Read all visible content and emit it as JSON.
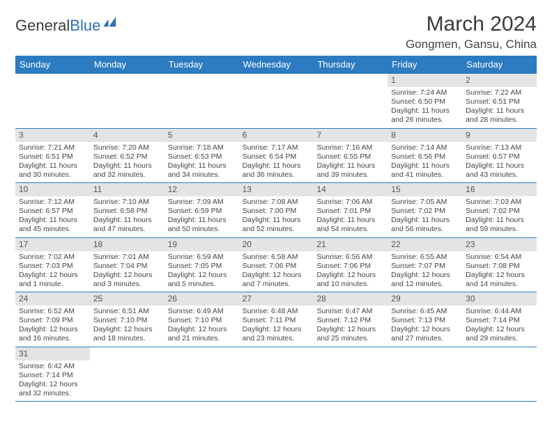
{
  "logo": {
    "text1": "General",
    "text2": "Blue"
  },
  "title": "March 2024",
  "location": "Gongmen, Gansu, China",
  "colors": {
    "header_bg": "#2d7bc0",
    "header_text": "#ffffff",
    "daynum_bg": "#e4e4e4",
    "border": "#2d7bc0",
    "text": "#444444"
  },
  "weekdays": [
    "Sunday",
    "Monday",
    "Tuesday",
    "Wednesday",
    "Thursday",
    "Friday",
    "Saturday"
  ],
  "weeks": [
    [
      {
        "n": "",
        "sr": "",
        "ss": "",
        "dl": ""
      },
      {
        "n": "",
        "sr": "",
        "ss": "",
        "dl": ""
      },
      {
        "n": "",
        "sr": "",
        "ss": "",
        "dl": ""
      },
      {
        "n": "",
        "sr": "",
        "ss": "",
        "dl": ""
      },
      {
        "n": "",
        "sr": "",
        "ss": "",
        "dl": ""
      },
      {
        "n": "1",
        "sr": "Sunrise: 7:24 AM",
        "ss": "Sunset: 6:50 PM",
        "dl": "Daylight: 11 hours and 26 minutes."
      },
      {
        "n": "2",
        "sr": "Sunrise: 7:22 AM",
        "ss": "Sunset: 6:51 PM",
        "dl": "Daylight: 11 hours and 28 minutes."
      }
    ],
    [
      {
        "n": "3",
        "sr": "Sunrise: 7:21 AM",
        "ss": "Sunset: 6:51 PM",
        "dl": "Daylight: 11 hours and 30 minutes."
      },
      {
        "n": "4",
        "sr": "Sunrise: 7:20 AM",
        "ss": "Sunset: 6:52 PM",
        "dl": "Daylight: 11 hours and 32 minutes."
      },
      {
        "n": "5",
        "sr": "Sunrise: 7:18 AM",
        "ss": "Sunset: 6:53 PM",
        "dl": "Daylight: 11 hours and 34 minutes."
      },
      {
        "n": "6",
        "sr": "Sunrise: 7:17 AM",
        "ss": "Sunset: 6:54 PM",
        "dl": "Daylight: 11 hours and 36 minutes."
      },
      {
        "n": "7",
        "sr": "Sunrise: 7:16 AM",
        "ss": "Sunset: 6:55 PM",
        "dl": "Daylight: 11 hours and 39 minutes."
      },
      {
        "n": "8",
        "sr": "Sunrise: 7:14 AM",
        "ss": "Sunset: 6:56 PM",
        "dl": "Daylight: 11 hours and 41 minutes."
      },
      {
        "n": "9",
        "sr": "Sunrise: 7:13 AM",
        "ss": "Sunset: 6:57 PM",
        "dl": "Daylight: 11 hours and 43 minutes."
      }
    ],
    [
      {
        "n": "10",
        "sr": "Sunrise: 7:12 AM",
        "ss": "Sunset: 6:57 PM",
        "dl": "Daylight: 11 hours and 45 minutes."
      },
      {
        "n": "11",
        "sr": "Sunrise: 7:10 AM",
        "ss": "Sunset: 6:58 PM",
        "dl": "Daylight: 11 hours and 47 minutes."
      },
      {
        "n": "12",
        "sr": "Sunrise: 7:09 AM",
        "ss": "Sunset: 6:59 PM",
        "dl": "Daylight: 11 hours and 50 minutes."
      },
      {
        "n": "13",
        "sr": "Sunrise: 7:08 AM",
        "ss": "Sunset: 7:00 PM",
        "dl": "Daylight: 11 hours and 52 minutes."
      },
      {
        "n": "14",
        "sr": "Sunrise: 7:06 AM",
        "ss": "Sunset: 7:01 PM",
        "dl": "Daylight: 11 hours and 54 minutes."
      },
      {
        "n": "15",
        "sr": "Sunrise: 7:05 AM",
        "ss": "Sunset: 7:02 PM",
        "dl": "Daylight: 11 hours and 56 minutes."
      },
      {
        "n": "16",
        "sr": "Sunrise: 7:03 AM",
        "ss": "Sunset: 7:02 PM",
        "dl": "Daylight: 11 hours and 59 minutes."
      }
    ],
    [
      {
        "n": "17",
        "sr": "Sunrise: 7:02 AM",
        "ss": "Sunset: 7:03 PM",
        "dl": "Daylight: 12 hours and 1 minute."
      },
      {
        "n": "18",
        "sr": "Sunrise: 7:01 AM",
        "ss": "Sunset: 7:04 PM",
        "dl": "Daylight: 12 hours and 3 minutes."
      },
      {
        "n": "19",
        "sr": "Sunrise: 6:59 AM",
        "ss": "Sunset: 7:05 PM",
        "dl": "Daylight: 12 hours and 5 minutes."
      },
      {
        "n": "20",
        "sr": "Sunrise: 6:58 AM",
        "ss": "Sunset: 7:06 PM",
        "dl": "Daylight: 12 hours and 7 minutes."
      },
      {
        "n": "21",
        "sr": "Sunrise: 6:56 AM",
        "ss": "Sunset: 7:06 PM",
        "dl": "Daylight: 12 hours and 10 minutes."
      },
      {
        "n": "22",
        "sr": "Sunrise: 6:55 AM",
        "ss": "Sunset: 7:07 PM",
        "dl": "Daylight: 12 hours and 12 minutes."
      },
      {
        "n": "23",
        "sr": "Sunrise: 6:54 AM",
        "ss": "Sunset: 7:08 PM",
        "dl": "Daylight: 12 hours and 14 minutes."
      }
    ],
    [
      {
        "n": "24",
        "sr": "Sunrise: 6:52 AM",
        "ss": "Sunset: 7:09 PM",
        "dl": "Daylight: 12 hours and 16 minutes."
      },
      {
        "n": "25",
        "sr": "Sunrise: 6:51 AM",
        "ss": "Sunset: 7:10 PM",
        "dl": "Daylight: 12 hours and 18 minutes."
      },
      {
        "n": "26",
        "sr": "Sunrise: 6:49 AM",
        "ss": "Sunset: 7:10 PM",
        "dl": "Daylight: 12 hours and 21 minutes."
      },
      {
        "n": "27",
        "sr": "Sunrise: 6:48 AM",
        "ss": "Sunset: 7:11 PM",
        "dl": "Daylight: 12 hours and 23 minutes."
      },
      {
        "n": "28",
        "sr": "Sunrise: 6:47 AM",
        "ss": "Sunset: 7:12 PM",
        "dl": "Daylight: 12 hours and 25 minutes."
      },
      {
        "n": "29",
        "sr": "Sunrise: 6:45 AM",
        "ss": "Sunset: 7:13 PM",
        "dl": "Daylight: 12 hours and 27 minutes."
      },
      {
        "n": "30",
        "sr": "Sunrise: 6:44 AM",
        "ss": "Sunset: 7:14 PM",
        "dl": "Daylight: 12 hours and 29 minutes."
      }
    ],
    [
      {
        "n": "31",
        "sr": "Sunrise: 6:42 AM",
        "ss": "Sunset: 7:14 PM",
        "dl": "Daylight: 12 hours and 32 minutes."
      },
      {
        "n": "",
        "sr": "",
        "ss": "",
        "dl": ""
      },
      {
        "n": "",
        "sr": "",
        "ss": "",
        "dl": ""
      },
      {
        "n": "",
        "sr": "",
        "ss": "",
        "dl": ""
      },
      {
        "n": "",
        "sr": "",
        "ss": "",
        "dl": ""
      },
      {
        "n": "",
        "sr": "",
        "ss": "",
        "dl": ""
      },
      {
        "n": "",
        "sr": "",
        "ss": "",
        "dl": ""
      }
    ]
  ]
}
